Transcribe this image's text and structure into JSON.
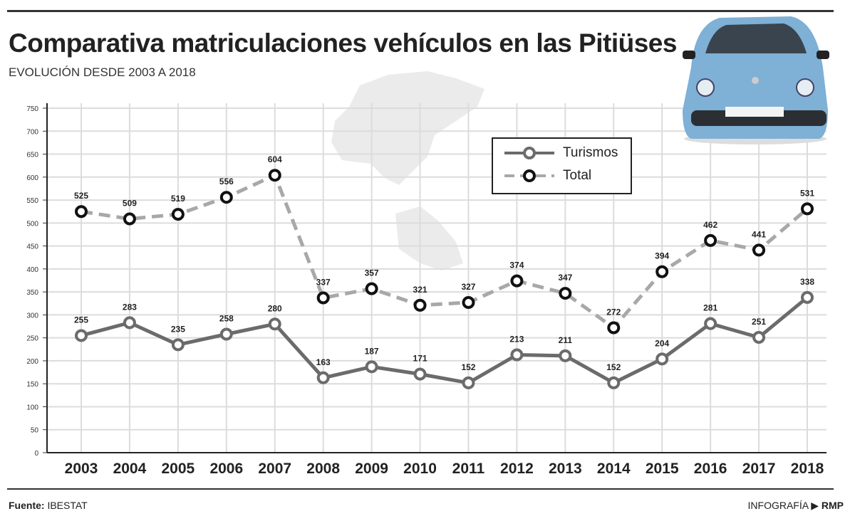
{
  "header": {
    "title": "Comparativa matriculaciones vehículos en las Pitiüses",
    "subtitle": "EVOLUCIÓN DESDE 2003 A 2018"
  },
  "footer": {
    "source_label": "Fuente:",
    "source_value": "IBESTAT",
    "credit_label": "INFOGRAFÍA",
    "credit_arrow": "▶",
    "credit_value": "RMP"
  },
  "chart_data": {
    "type": "line",
    "title": "Comparativa matriculaciones vehículos en las Pitiüses",
    "subtitle": "EVOLUCIÓN DESDE 2003 A 2018",
    "categories": [
      "2003",
      "2004",
      "2005",
      "2006",
      "2007",
      "2008",
      "2009",
      "2010",
      "2011",
      "2012",
      "2013",
      "2014",
      "2015",
      "2016",
      "2017",
      "2018"
    ],
    "yticks": [
      "0",
      "50",
      "100",
      "150",
      "200",
      "250",
      "300",
      "350",
      "400",
      "450",
      "500",
      "550",
      "600",
      "650",
      "700",
      "750"
    ],
    "ylim": [
      0,
      750
    ],
    "grid": true,
    "legend_position": "top-right",
    "series": [
      {
        "name": "Turismos",
        "values": [
          255,
          283,
          235,
          258,
          280,
          163,
          187,
          171,
          152,
          213,
          211,
          152,
          204,
          281,
          251,
          338
        ],
        "color": "#6b6b6b",
        "style": "solid"
      },
      {
        "name": "Total",
        "values": [
          525,
          509,
          519,
          556,
          604,
          337,
          357,
          321,
          327,
          374,
          347,
          272,
          394,
          462,
          441,
          531
        ],
        "color": "#a8a8a8",
        "style": "dashed"
      }
    ]
  }
}
